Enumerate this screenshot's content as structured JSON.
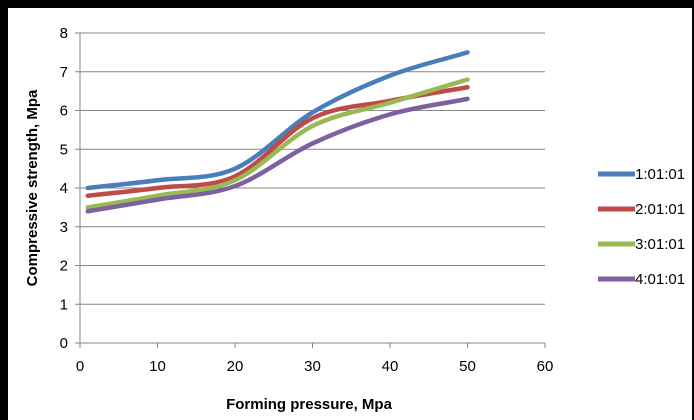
{
  "chart_data": {
    "type": "line",
    "xlabel": "Forming pressure, Mpa",
    "ylabel": "Compressive strength, Mpa",
    "xlim": [
      0,
      60
    ],
    "ylim": [
      0,
      8
    ],
    "x_ticks": [
      0,
      10,
      20,
      30,
      40,
      50,
      60
    ],
    "y_ticks": [
      0,
      1,
      2,
      3,
      4,
      5,
      6,
      7,
      8
    ],
    "grid": "horizontal",
    "legend_position": "right",
    "x": [
      1,
      10,
      20,
      30,
      40,
      50
    ],
    "series": [
      {
        "name": "1:01:01",
        "color": "#4A7EBB",
        "values": [
          4.0,
          4.2,
          4.5,
          5.95,
          6.9,
          7.5
        ]
      },
      {
        "name": "2:01:01",
        "color": "#BE4B48",
        "values": [
          3.8,
          4.0,
          4.3,
          5.8,
          6.25,
          6.6
        ]
      },
      {
        "name": "3:01:01",
        "color": "#98B954",
        "values": [
          3.5,
          3.8,
          4.2,
          5.6,
          6.2,
          6.8
        ]
      },
      {
        "name": "4:01:01",
        "color": "#7D60A0",
        "values": [
          3.4,
          3.7,
          4.05,
          5.15,
          5.9,
          6.3
        ]
      }
    ]
  }
}
